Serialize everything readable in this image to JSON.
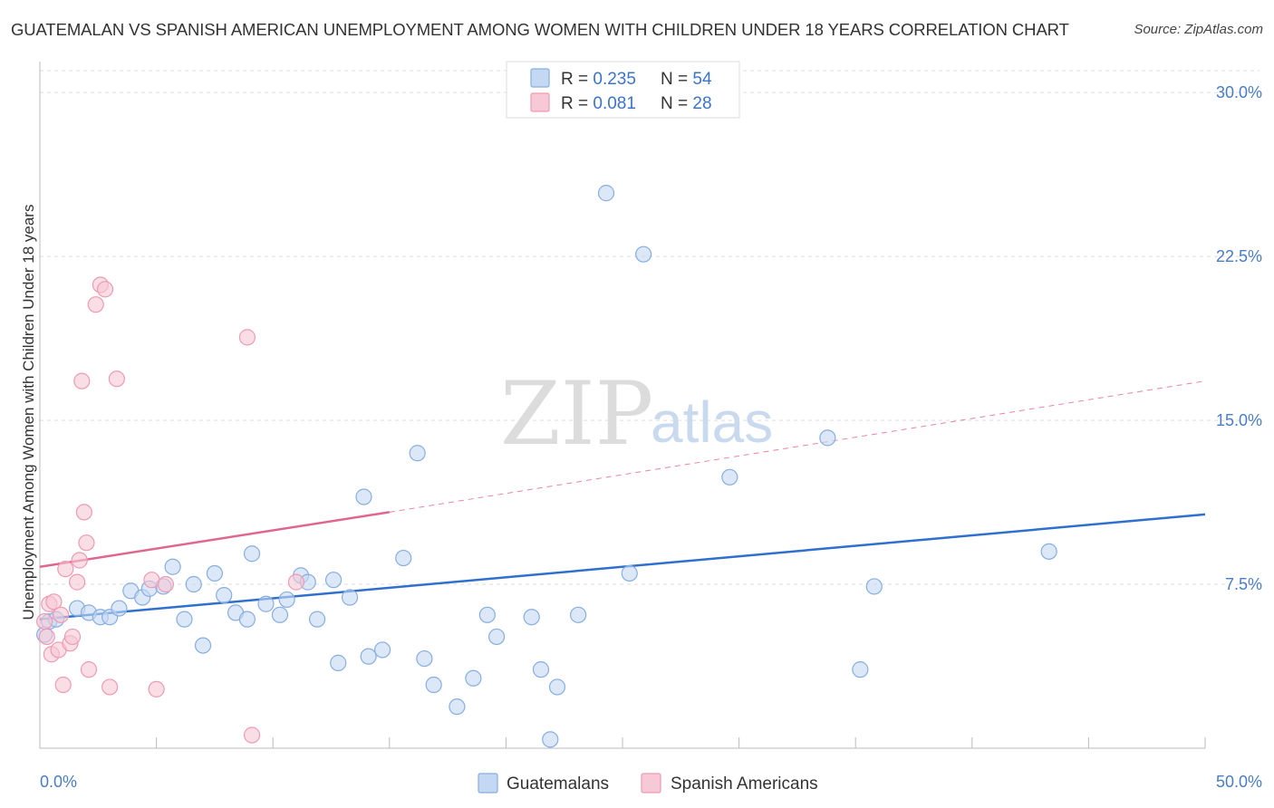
{
  "title": "GUATEMALAN VS SPANISH AMERICAN UNEMPLOYMENT AMONG WOMEN WITH CHILDREN UNDER 18 YEARS CORRELATION CHART",
  "source": "Source: ZipAtlas.com",
  "watermark": {
    "zip": "ZIP",
    "atlas": "atlas"
  },
  "colors": {
    "guatemalans_fill": "#c5d8f3",
    "guatemalans_stroke": "#86aee0",
    "guatemalans_line": "#2f6fce",
    "spanish_fill": "#f7c8d6",
    "spanish_stroke": "#ee9ab5",
    "spanish_line": "#e0668e",
    "tick_text": "#4a7cc7",
    "grid": "#dddddd"
  },
  "legend": {
    "rows": [
      {
        "r_label": "R = ",
        "r_value": "0.235",
        "n_label": "N = ",
        "n_value": "54"
      },
      {
        "r_label": "R = ",
        "r_value": "0.081",
        "n_label": "N = ",
        "n_value": "28"
      }
    ]
  },
  "chart_data": {
    "type": "scatter",
    "title": "GUATEMALAN VS SPANISH AMERICAN UNEMPLOYMENT AMONG WOMEN WITH CHILDREN UNDER 18 YEARS CORRELATION CHART",
    "xlabel": "",
    "ylabel": "Unemployment Among Women with Children Under 18 years",
    "xlim": [
      0,
      50
    ],
    "ylim": [
      0,
      31
    ],
    "x_tick_labels": [
      "0.0%",
      "50.0%"
    ],
    "y_ticks": [
      7.5,
      15.0,
      22.5,
      30.0
    ],
    "y_tick_labels": [
      "7.5%",
      "15.0%",
      "22.5%",
      "30.0%"
    ],
    "grid": true,
    "legend_position": "top-center",
    "series": [
      {
        "name": "Guatemalans",
        "points": [
          [
            0.4,
            5.8
          ],
          [
            0.7,
            5.9
          ],
          [
            1.6,
            6.4
          ],
          [
            2.1,
            6.2
          ],
          [
            2.6,
            6.0
          ],
          [
            3.0,
            6.0
          ],
          [
            3.4,
            6.4
          ],
          [
            3.9,
            7.2
          ],
          [
            4.4,
            6.9
          ],
          [
            4.7,
            7.3
          ],
          [
            5.3,
            7.4
          ],
          [
            5.7,
            8.3
          ],
          [
            6.2,
            5.9
          ],
          [
            6.6,
            7.5
          ],
          [
            7.0,
            4.7
          ],
          [
            7.5,
            8.0
          ],
          [
            7.9,
            7.0
          ],
          [
            8.4,
            6.2
          ],
          [
            8.9,
            5.9
          ],
          [
            9.1,
            8.9
          ],
          [
            9.7,
            6.6
          ],
          [
            10.3,
            6.1
          ],
          [
            10.6,
            6.8
          ],
          [
            11.2,
            7.9
          ],
          [
            11.5,
            7.6
          ],
          [
            11.9,
            5.9
          ],
          [
            12.6,
            7.7
          ],
          [
            12.8,
            3.9
          ],
          [
            13.3,
            6.9
          ],
          [
            13.9,
            11.5
          ],
          [
            14.1,
            4.2
          ],
          [
            14.7,
            4.5
          ],
          [
            15.6,
            8.7
          ],
          [
            16.2,
            13.5
          ],
          [
            16.5,
            4.1
          ],
          [
            16.9,
            2.9
          ],
          [
            17.9,
            1.9
          ],
          [
            18.6,
            3.2
          ],
          [
            19.2,
            6.1
          ],
          [
            19.6,
            5.1
          ],
          [
            21.1,
            6.0
          ],
          [
            21.5,
            3.6
          ],
          [
            21.9,
            0.4
          ],
          [
            22.2,
            2.8
          ],
          [
            23.1,
            6.1
          ],
          [
            24.3,
            25.4
          ],
          [
            25.3,
            8.0
          ],
          [
            25.9,
            22.6
          ],
          [
            29.6,
            12.4
          ],
          [
            33.8,
            14.2
          ],
          [
            35.2,
            3.6
          ],
          [
            35.8,
            7.4
          ],
          [
            43.3,
            9.0
          ],
          [
            0.2,
            5.2
          ]
        ],
        "trend": {
          "x": [
            0,
            50
          ],
          "y": [
            5.9,
            10.7
          ],
          "style": "solid"
        }
      },
      {
        "name": "Spanish Americans",
        "points": [
          [
            0.2,
            5.8
          ],
          [
            0.3,
            5.1
          ],
          [
            0.4,
            6.6
          ],
          [
            0.5,
            4.3
          ],
          [
            0.6,
            6.7
          ],
          [
            0.8,
            4.5
          ],
          [
            0.9,
            6.1
          ],
          [
            1.0,
            2.9
          ],
          [
            1.1,
            8.2
          ],
          [
            1.3,
            4.8
          ],
          [
            1.4,
            5.1
          ],
          [
            1.6,
            7.6
          ],
          [
            1.7,
            8.6
          ],
          [
            1.8,
            16.8
          ],
          [
            1.9,
            10.8
          ],
          [
            2.0,
            9.4
          ],
          [
            2.1,
            3.6
          ],
          [
            2.4,
            20.3
          ],
          [
            2.6,
            21.2
          ],
          [
            2.8,
            21.0
          ],
          [
            3.0,
            2.8
          ],
          [
            3.3,
            16.9
          ],
          [
            4.8,
            7.7
          ],
          [
            5.0,
            2.7
          ],
          [
            5.4,
            7.5
          ],
          [
            8.9,
            18.8
          ],
          [
            9.1,
            0.6
          ],
          [
            11.0,
            7.6
          ]
        ],
        "trend": {
          "x": [
            0,
            15
          ],
          "y": [
            8.3,
            10.8
          ],
          "style": "solid",
          "extended": {
            "x": [
              15,
              50
            ],
            "y": [
              10.8,
              16.8
            ],
            "style": "dashed"
          }
        }
      }
    ]
  },
  "bottom_legend": {
    "items": [
      {
        "label": "Guatemalans"
      },
      {
        "label": "Spanish Americans"
      }
    ]
  }
}
